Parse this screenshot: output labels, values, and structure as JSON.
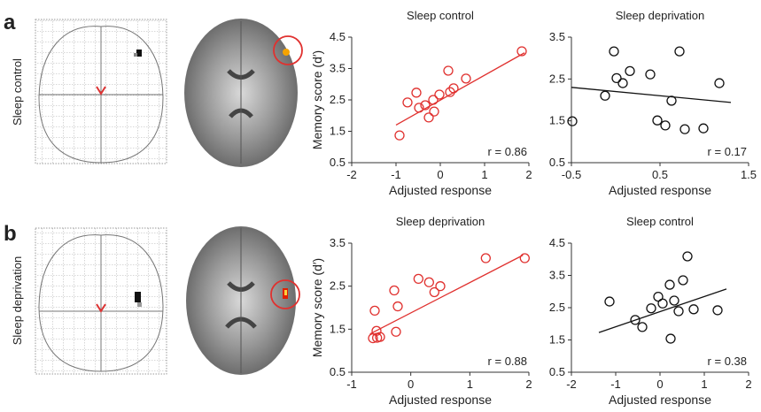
{
  "panels": [
    {
      "letter": "a",
      "row_label": "Sleep control"
    },
    {
      "letter": "b",
      "row_label": "Sleep deprivation"
    }
  ],
  "chart_data": [
    {
      "type": "scatter",
      "title": "Sleep control",
      "xlabel": "Adjusted response",
      "ylabel": "Memory score (d′)",
      "color": "#e0312f",
      "x": [
        -0.92,
        -0.74,
        -0.54,
        -0.48,
        -0.34,
        -0.26,
        -0.16,
        -0.14,
        -0.02,
        0.18,
        0.22,
        0.3,
        0.58,
        1.84
      ],
      "values": [
        1.37,
        2.42,
        2.73,
        2.25,
        2.33,
        1.94,
        2.5,
        2.13,
        2.67,
        3.43,
        2.75,
        2.87,
        3.18,
        4.05
      ],
      "fit": {
        "x": [
          -1,
          1.9
        ],
        "y": [
          1.7,
          4.0
        ]
      },
      "annotation": "r = 0.86",
      "xlim": [
        -2,
        2
      ],
      "xticks": [
        -2,
        -1,
        0,
        1,
        2
      ],
      "ylim": [
        0.5,
        4.5
      ],
      "yticks": [
        0.5,
        1.5,
        2.5,
        3.5,
        4.5
      ]
    },
    {
      "type": "scatter",
      "title": "Sleep deprivation",
      "xlabel": "Adjusted response",
      "color": "#111111",
      "x": [
        -0.49,
        -0.12,
        -0.02,
        0.01,
        0.08,
        0.16,
        0.39,
        0.47,
        0.56,
        0.63,
        0.72,
        0.78,
        0.99,
        1.17
      ],
      "values": [
        1.49,
        2.1,
        3.16,
        2.52,
        2.4,
        2.69,
        2.61,
        1.51,
        1.39,
        1.98,
        3.16,
        1.3,
        1.32,
        2.4
      ],
      "fit": {
        "x": [
          -0.5,
          1.3
        ],
        "y": [
          2.3,
          1.94
        ]
      },
      "annotation": "r = 0.17",
      "xlim": [
        -0.5,
        1.5
      ],
      "xticks": [
        -0.5,
        0.5,
        1.5
      ],
      "ylim": [
        0.5,
        3.5
      ],
      "yticks": [
        0.5,
        1.5,
        2.5,
        3.5
      ]
    },
    {
      "type": "scatter",
      "title": "Sleep deprivation",
      "xlabel": "Adjusted response",
      "ylabel": "Memory score (d′)",
      "color": "#e0312f",
      "x": [
        -0.64,
        -0.61,
        -0.58,
        -0.57,
        -0.52,
        -0.28,
        -0.25,
        -0.22,
        0.13,
        0.31,
        0.4,
        0.5,
        1.27,
        1.93
      ],
      "values": [
        1.29,
        1.93,
        1.46,
        1.3,
        1.32,
        2.4,
        1.44,
        2.03,
        2.67,
        2.59,
        2.36,
        2.5,
        3.15,
        3.15
      ],
      "fit": {
        "x": [
          -0.69,
          1.9
        ],
        "y": [
          1.39,
          3.22
        ]
      },
      "annotation": "r = 0.88",
      "xlim": [
        -1,
        2
      ],
      "xticks": [
        -1,
        0,
        1,
        2
      ],
      "ylim": [
        0.5,
        3.5
      ],
      "yticks": [
        0.5,
        1.5,
        2.5,
        3.5
      ]
    },
    {
      "type": "scatter",
      "title": "Sleep control",
      "xlabel": "Adjusted response",
      "color": "#111111",
      "x": [
        -1.14,
        -0.56,
        -0.4,
        -0.2,
        -0.04,
        0.06,
        0.22,
        0.24,
        0.32,
        0.42,
        0.52,
        0.62,
        0.76,
        1.3
      ],
      "values": [
        2.69,
        2.12,
        1.9,
        2.48,
        2.84,
        2.63,
        3.21,
        1.54,
        2.72,
        2.39,
        3.35,
        4.09,
        2.45,
        2.42
      ],
      "fit": {
        "x": [
          -1.38,
          1.5
        ],
        "y": [
          1.73,
          3.08
        ]
      },
      "annotation": "r = 0.38",
      "xlim": [
        -2,
        2
      ],
      "xticks": [
        -2,
        -1,
        0,
        1,
        2
      ],
      "ylim": [
        0.5,
        4.5
      ],
      "yticks": [
        0.5,
        1.5,
        2.5,
        3.5,
        4.5
      ]
    }
  ]
}
